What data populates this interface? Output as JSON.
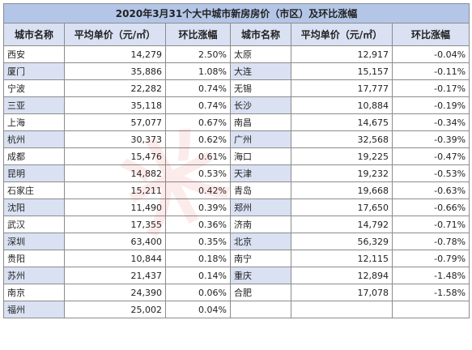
{
  "title": "2020年3月31个大中城市新房房价（市区）及环比涨幅",
  "headers": [
    "城市名称",
    "平均单价（元/㎡）",
    "环比涨幅",
    "城市名称",
    "平均单价（元/㎡）",
    "环比涨幅"
  ],
  "left": [
    {
      "city": "西安",
      "price": "14,279",
      "change": "2.50%"
    },
    {
      "city": "厦门",
      "price": "35,886",
      "change": "1.08%"
    },
    {
      "city": "宁波",
      "price": "22,282",
      "change": "0.74%"
    },
    {
      "city": "三亚",
      "price": "35,118",
      "change": "0.74%"
    },
    {
      "city": "上海",
      "price": "57,077",
      "change": "0.67%"
    },
    {
      "city": "杭州",
      "price": "30,373",
      "change": "0.62%"
    },
    {
      "city": "成都",
      "price": "15,476",
      "change": "0.61%"
    },
    {
      "city": "昆明",
      "price": "14,882",
      "change": "0.53%"
    },
    {
      "city": "石家庄",
      "price": "15,211",
      "change": "0.42%"
    },
    {
      "city": "沈阳",
      "price": "11,490",
      "change": "0.39%"
    },
    {
      "city": "武汉",
      "price": "17,355",
      "change": "0.36%"
    },
    {
      "city": "深圳",
      "price": "63,400",
      "change": "0.35%"
    },
    {
      "city": "贵阳",
      "price": "10,844",
      "change": "0.18%"
    },
    {
      "city": "苏州",
      "price": "21,437",
      "change": "0.14%"
    },
    {
      "city": "南京",
      "price": "24,390",
      "change": "0.06%"
    },
    {
      "city": "福州",
      "price": "25,002",
      "change": "0.04%"
    }
  ],
  "right": [
    {
      "city": "太原",
      "price": "12,917",
      "change": "-0.04%"
    },
    {
      "city": "大连",
      "price": "15,157",
      "change": "-0.11%"
    },
    {
      "city": "无锡",
      "price": "17,777",
      "change": "-0.17%"
    },
    {
      "city": "长沙",
      "price": "10,884",
      "change": "-0.19%"
    },
    {
      "city": "南昌",
      "price": "14,675",
      "change": "-0.34%"
    },
    {
      "city": "广州",
      "price": "32,568",
      "change": "-0.39%"
    },
    {
      "city": "海口",
      "price": "19,225",
      "change": "-0.47%"
    },
    {
      "city": "天津",
      "price": "19,232",
      "change": "-0.53%"
    },
    {
      "city": "青岛",
      "price": "19,668",
      "change": "-0.63%"
    },
    {
      "city": "郑州",
      "price": "17,650",
      "change": "-0.66%"
    },
    {
      "city": "济南",
      "price": "14,792",
      "change": "-0.71%"
    },
    {
      "city": "北京",
      "price": "56,329",
      "change": "-0.78%"
    },
    {
      "city": "南宁",
      "price": "12,115",
      "change": "-0.79%"
    },
    {
      "city": "重庆",
      "price": "12,894",
      "change": "-1.48%"
    },
    {
      "city": "合肥",
      "price": "17,078",
      "change": "-1.58%"
    }
  ],
  "colors": {
    "title_bg": "#b4c6e7",
    "header_bg": "#d9e1f2",
    "grid": "#8c8c8c",
    "watermark": "#e63c3c"
  },
  "watermark_text": "米"
}
